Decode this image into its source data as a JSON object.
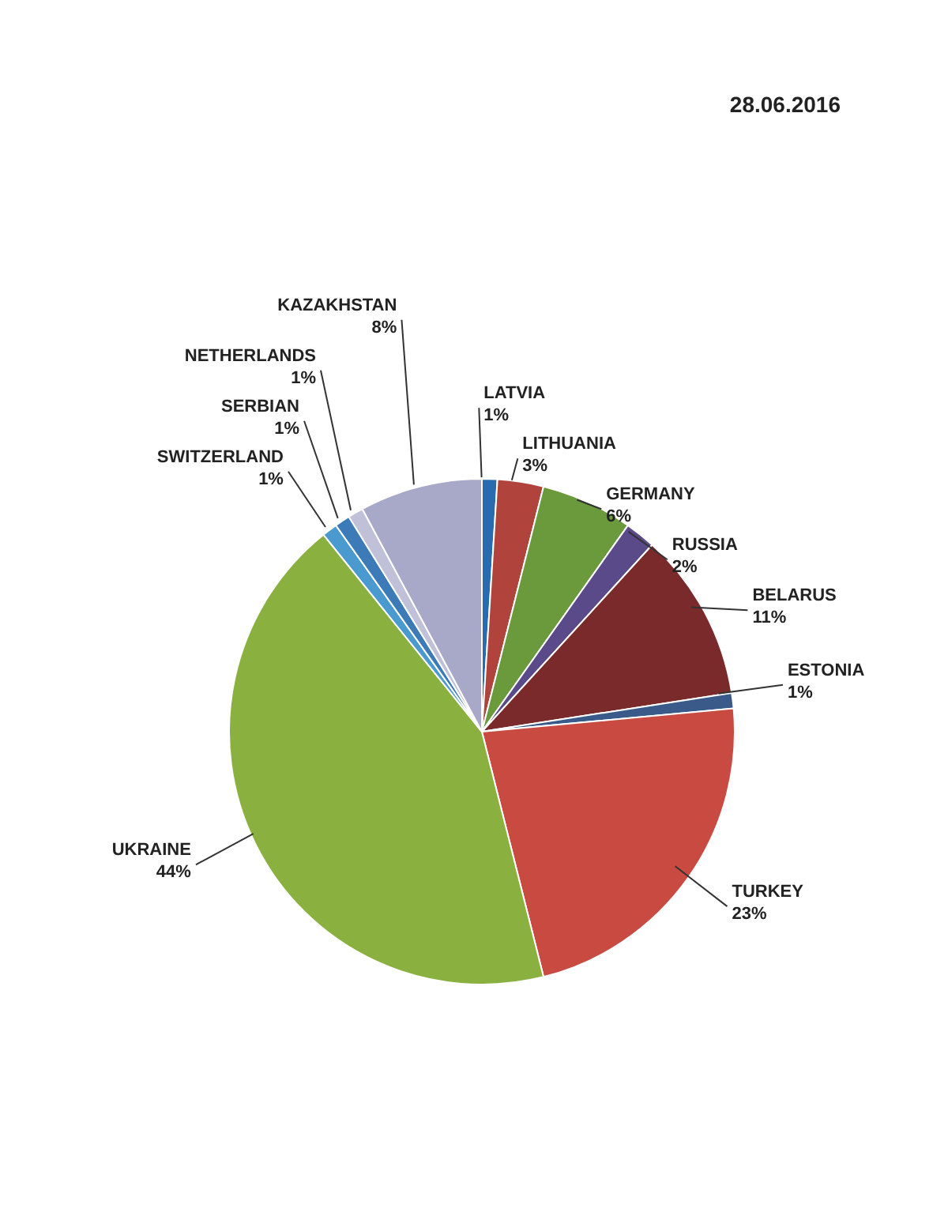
{
  "chart_data": {
    "type": "pie",
    "categories": [
      "LATVIA",
      "LITHUANIA",
      "GERMANY",
      "RUSSIA",
      "BELARUS",
      "ESTONIA",
      "TURKEY",
      "UKRAINE",
      "SWITZERLAND",
      "SERBIAN",
      "NETHERLANDS",
      "KAZAKHSTAN"
    ],
    "values": [
      1,
      3,
      6,
      2,
      11,
      1,
      23,
      44,
      1,
      1,
      1,
      8
    ],
    "value_labels": [
      "1%",
      "3%",
      "6%",
      "2%",
      "11%",
      "1%",
      "23%",
      "44%",
      "1%",
      "1%",
      "1%",
      "8%"
    ],
    "colors": [
      "#2a6bb0",
      "#b0443c",
      "#6a9a3c",
      "#5a4a8a",
      "#7a2a2a",
      "#3a5a8a",
      "#c84a40",
      "#8ab040",
      "#4a9ad0",
      "#3c7ab8",
      "#c0c0d8",
      "#a8a8c8"
    ],
    "annotations": [
      "28.06.2016"
    ],
    "legend": false
  }
}
